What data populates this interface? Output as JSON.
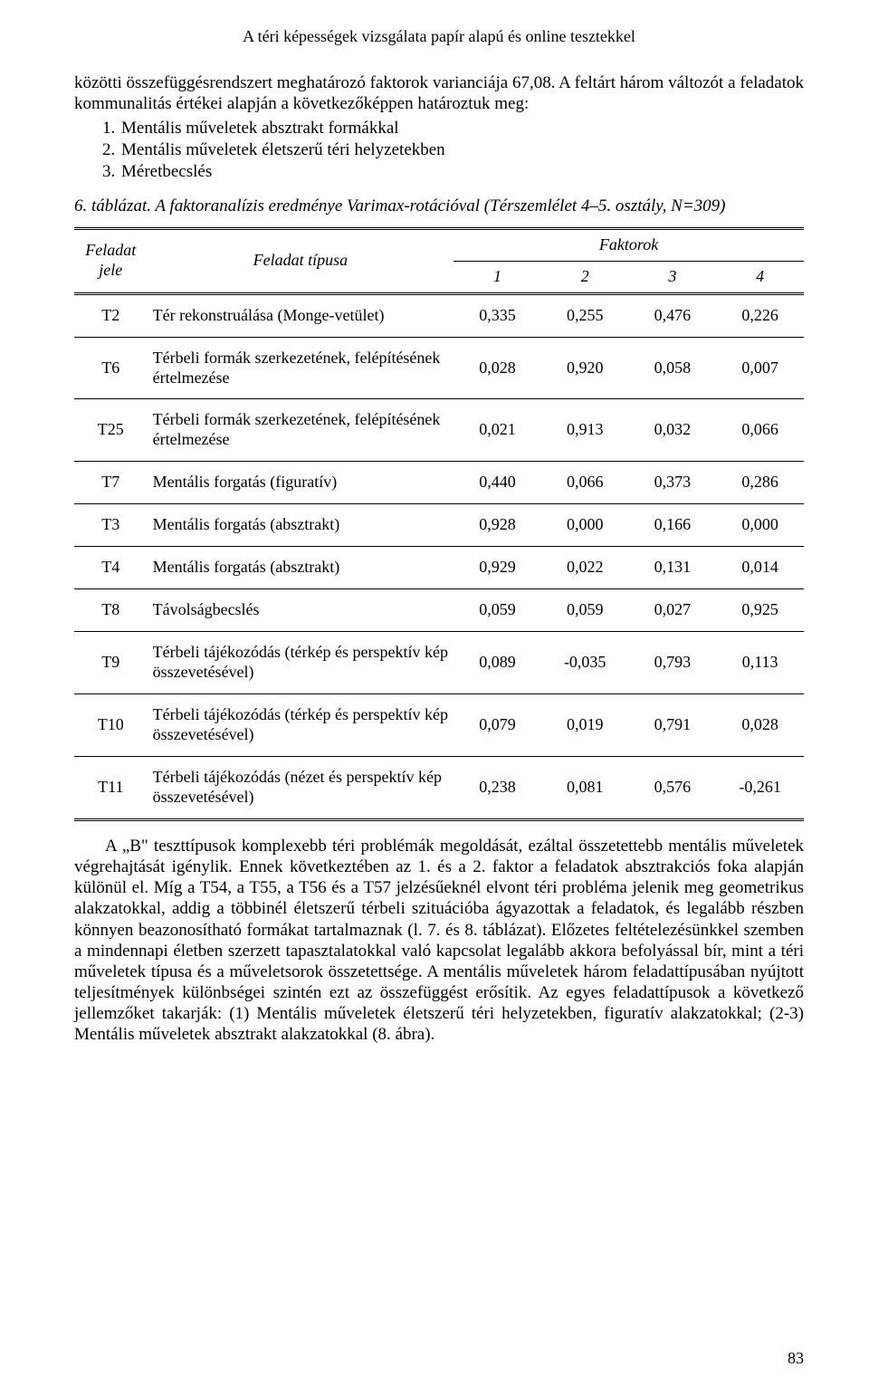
{
  "running_head": "A téri képességek vizsgálata papír alapú és online tesztekkel",
  "intro": {
    "lead": "közötti összefüggésrendszert meghatározó faktorok varianciája 67,08. A feltárt három változót a feladatok kommunalitás értékei alapján a következőképpen határoztuk meg:",
    "items": [
      "Mentális műveletek absztrakt formákkal",
      "Mentális műveletek életszerű téri helyzetekben",
      "Méretbecslés"
    ]
  },
  "table_caption": {
    "label": "6. táblázat.",
    "text": "A faktoranalízis eredménye Varimax-rotációval (Térszemlélet 4–5. osztály, N=309)"
  },
  "table": {
    "header": {
      "code": "Feladat jele",
      "type": "Feladat típusa",
      "factors_title": "Faktorok",
      "factor_cols": [
        "1",
        "2",
        "3",
        "4"
      ]
    },
    "rows": [
      {
        "code": "T2",
        "type": "Tér rekonstruálása (Monge-vetület)",
        "vals": [
          "0,335",
          "0,255",
          "0,476",
          "0,226"
        ]
      },
      {
        "code": "T6",
        "type": "Térbeli formák szerkezetének, felépítésének értelmezése",
        "vals": [
          "0,028",
          "0,920",
          "0,058",
          "0,007"
        ]
      },
      {
        "code": "T25",
        "type": "Térbeli formák szerkezetének, felépítésének értelmezése",
        "vals": [
          "0,021",
          "0,913",
          "0,032",
          "0,066"
        ]
      },
      {
        "code": "T7",
        "type": "Mentális forgatás (figuratív)",
        "vals": [
          "0,440",
          "0,066",
          "0,373",
          "0,286"
        ]
      },
      {
        "code": "T3",
        "type": "Mentális forgatás (absztrakt)",
        "vals": [
          "0,928",
          "0,000",
          "0,166",
          "0,000"
        ]
      },
      {
        "code": "T4",
        "type": "Mentális forgatás (absztrakt)",
        "vals": [
          "0,929",
          "0,022",
          "0,131",
          "0,014"
        ]
      },
      {
        "code": "T8",
        "type": "Távolságbecslés",
        "vals": [
          "0,059",
          "0,059",
          "0,027",
          "0,925"
        ]
      },
      {
        "code": "T9",
        "type": "Térbeli tájékozódás (térkép és perspektív kép összevetésével)",
        "vals": [
          "0,089",
          "-0,035",
          "0,793",
          "0,113"
        ]
      },
      {
        "code": "T10",
        "type": "Térbeli tájékozódás (térkép és perspektív kép összevetésével)",
        "vals": [
          "0,079",
          "0,019",
          "0,791",
          "0,028"
        ]
      },
      {
        "code": "T11",
        "type": "Térbeli tájékozódás (nézet és perspektív kép összevetésével)",
        "vals": [
          "0,238",
          "0,081",
          "0,576",
          "-0,261"
        ]
      }
    ]
  },
  "post_para": "A „B\" teszttípusok komplexebb téri problémák megoldását, ezáltal összetettebb mentális műveletek végrehajtását igénylik. Ennek következtében az 1. és a 2. faktor a feladatok absztrakciós foka alapján különül el. Míg a T54, a T55, a T56 és a T57 jelzésűeknél elvont téri probléma jelenik meg geometrikus alakzatokkal, addig a többinél életszerű térbeli szituációba ágyazottak a feladatok, és legalább részben könnyen beazonosítható formákat tartalmaznak (l. 7. és 8. táblázat). Előzetes feltételezésünkkel szemben a mindennapi életben szerzett tapasztalatokkal való kapcsolat legalább akkora befolyással bír, mint a téri műveletek típusa és a műveletsorok összetettsége. A mentális műveletek három feladattípusában nyújtott teljesítmények különbségei szintén ezt az összefüggést erősítik. Az egyes feladattípusok a következő jellemzőket takarják: (1) Mentális műveletek életszerű téri helyzetekben, figuratív alakzatokkal; (2-3) Mentális műveletek absztrakt alakzatokkal (8. ábra).",
  "page_number": "83"
}
